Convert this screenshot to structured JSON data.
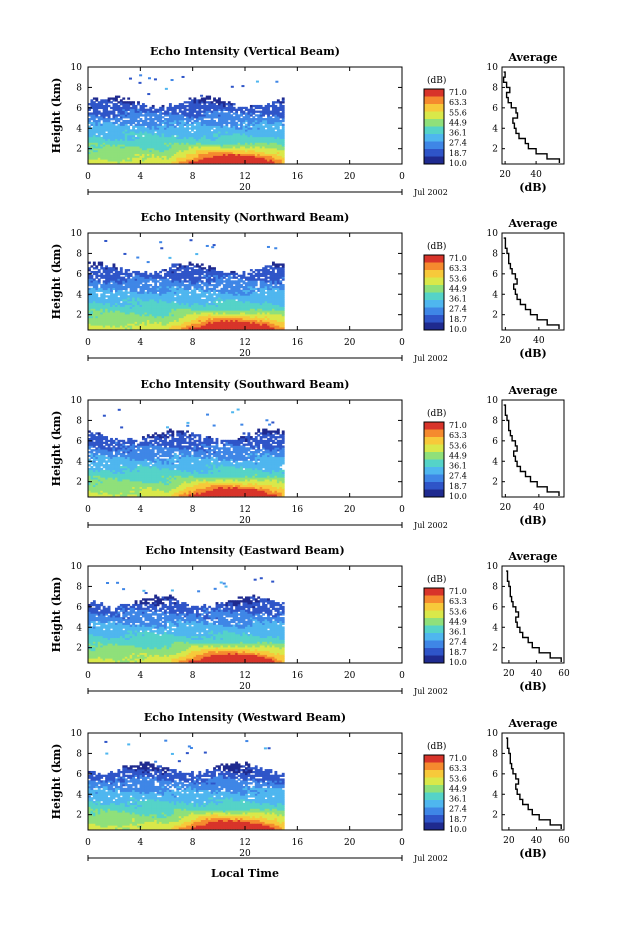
{
  "chart_data": [
    {
      "type": "heatmap",
      "title": "Echo Intensity (Vertical Beam)",
      "ylabel": "Height (km)",
      "xticks": [
        "0",
        "4",
        "8",
        "12",
        "16",
        "20",
        "0"
      ],
      "yticks": [
        "2",
        "4",
        "6",
        "8",
        "10"
      ],
      "xlim": [
        0,
        24
      ],
      "ylim": [
        0.5,
        10
      ],
      "day_label": "20",
      "date_label": "Jul 2002",
      "colorbar": {
        "unit": "(dB)",
        "labels": [
          "71.0",
          "63.3",
          "55.6",
          "44.9",
          "36.1",
          "27.4",
          "18.7",
          "10.0"
        ]
      },
      "average_profile": {
        "title": "Average",
        "xlabel": "(dB)",
        "xticks": [
          "20",
          "40"
        ],
        "xlim": [
          18,
          58
        ],
        "yticks": [
          "2",
          "4",
          "6",
          "8",
          "10"
        ],
        "height": [
          0.6,
          1.0,
          1.5,
          2.0,
          2.5,
          3.0,
          3.5,
          4.0,
          4.5,
          5.0,
          5.5,
          6.0,
          6.5,
          7.0,
          7.5,
          8.0,
          8.5,
          9.0,
          9.5
        ],
        "db": [
          55,
          47,
          40,
          35,
          33,
          29,
          27,
          26,
          25,
          28,
          27,
          24,
          22,
          21,
          23,
          21,
          19,
          20,
          19
        ]
      }
    },
    {
      "type": "heatmap",
      "title": "Echo Intensity (Northward Beam)",
      "ylabel": "Height (km)",
      "xticks": [
        "0",
        "4",
        "8",
        "12",
        "16",
        "20",
        "0"
      ],
      "yticks": [
        "2",
        "4",
        "6",
        "8",
        "10"
      ],
      "xlim": [
        0,
        24
      ],
      "ylim": [
        0.5,
        10
      ],
      "day_label": "20",
      "date_label": "Jul 2002",
      "colorbar": {
        "unit": "(dB)",
        "labels": [
          "71.0",
          "63.3",
          "53.6",
          "44.9",
          "36.1",
          "27.4",
          "18.7",
          "10.0"
        ]
      },
      "average_profile": {
        "title": "Average",
        "xlabel": "(dB)",
        "xticks": [
          "20",
          "40"
        ],
        "xlim": [
          18,
          55
        ],
        "yticks": [
          "2",
          "4",
          "6",
          "8",
          "10"
        ],
        "height": [
          0.6,
          1.0,
          1.5,
          2.0,
          2.5,
          3.0,
          3.5,
          4.0,
          4.5,
          5.0,
          5.5,
          6.0,
          6.5,
          7.0,
          7.5,
          8.0,
          8.5,
          9.0,
          9.5
        ],
        "db": [
          52,
          45,
          39,
          35,
          32,
          29,
          27,
          26,
          25,
          27,
          26,
          24,
          23,
          22,
          22,
          21,
          20,
          20,
          19
        ]
      }
    },
    {
      "type": "heatmap",
      "title": "Echo Intensity (Southward Beam)",
      "ylabel": "Height (km)",
      "xticks": [
        "0",
        "4",
        "8",
        "12",
        "16",
        "20",
        "0"
      ],
      "yticks": [
        "2",
        "4",
        "6",
        "8",
        "10"
      ],
      "xlim": [
        0,
        24
      ],
      "ylim": [
        0.5,
        10
      ],
      "day_label": "20",
      "date_label": "Jul 2002",
      "colorbar": {
        "unit": "(dB)",
        "labels": [
          "71.0",
          "63.3",
          "53.6",
          "44.9",
          "36.1",
          "27.4",
          "18.7",
          "10.0"
        ]
      },
      "average_profile": {
        "title": "Average",
        "xlabel": "(dB)",
        "xticks": [
          "20",
          "40"
        ],
        "xlim": [
          18,
          55
        ],
        "yticks": [
          "2",
          "4",
          "6",
          "8",
          "10"
        ],
        "height": [
          0.6,
          1.0,
          1.5,
          2.0,
          2.5,
          3.0,
          3.5,
          4.0,
          4.5,
          5.0,
          5.5,
          6.0,
          6.5,
          7.0,
          7.5,
          8.0,
          8.5,
          9.0,
          9.5
        ],
        "db": [
          52,
          45,
          39,
          35,
          32,
          29,
          27,
          26,
          25,
          27,
          26,
          24,
          23,
          22,
          22,
          21,
          20,
          20,
          19
        ]
      }
    },
    {
      "type": "heatmap",
      "title": "Echo Intensity (Eastward Beam)",
      "ylabel": "Height (km)",
      "xticks": [
        "0",
        "4",
        "8",
        "12",
        "16",
        "20",
        "0"
      ],
      "yticks": [
        "2",
        "4",
        "6",
        "8",
        "10"
      ],
      "xlim": [
        0,
        24
      ],
      "ylim": [
        0.5,
        10
      ],
      "day_label": "20",
      "date_label": "Jul 2002",
      "colorbar": {
        "unit": "(dB)",
        "labels": [
          "71.0",
          "63.3",
          "53.6",
          "44.9",
          "36.1",
          "27.4",
          "18.7",
          "10.0"
        ]
      },
      "average_profile": {
        "title": "Average",
        "xlabel": "(dB)",
        "xticks": [
          "20",
          "40",
          "60"
        ],
        "xlim": [
          15,
          60
        ],
        "yticks": [
          "2",
          "4",
          "6",
          "8",
          "10"
        ],
        "height": [
          0.6,
          1.0,
          1.5,
          2.0,
          2.5,
          3.0,
          3.5,
          4.0,
          4.5,
          5.0,
          5.5,
          6.0,
          6.5,
          7.0,
          7.5,
          8.0,
          8.5,
          9.0,
          9.5
        ],
        "db": [
          58,
          50,
          42,
          37,
          34,
          30,
          28,
          26,
          25,
          27,
          25,
          23,
          22,
          21,
          21,
          20,
          19,
          19,
          18
        ]
      }
    },
    {
      "type": "heatmap",
      "title": "Echo Intensity (Westward Beam)",
      "ylabel": "Height (km)",
      "xticks": [
        "0",
        "4",
        "8",
        "12",
        "16",
        "20",
        "0"
      ],
      "yticks": [
        "2",
        "4",
        "6",
        "8",
        "10"
      ],
      "xlim": [
        0,
        24
      ],
      "ylim": [
        0.5,
        10
      ],
      "day_label": "20",
      "date_label": "Jul 2002",
      "xlabel": "Local Time",
      "colorbar": {
        "unit": "(dB)",
        "labels": [
          "71.0",
          "63.3",
          "53.6",
          "44.9",
          "36.1",
          "27.4",
          "18.7",
          "10.0"
        ]
      },
      "average_profile": {
        "title": "Average",
        "xlabel": "(dB)",
        "xticks": [
          "20",
          "40",
          "60"
        ],
        "xlim": [
          15,
          60
        ],
        "yticks": [
          "2",
          "4",
          "6",
          "8",
          "10"
        ],
        "height": [
          0.6,
          1.0,
          1.5,
          2.0,
          2.5,
          3.0,
          3.5,
          4.0,
          4.5,
          5.0,
          5.5,
          6.0,
          6.5,
          7.0,
          7.5,
          8.0,
          8.5,
          9.0,
          9.5
        ],
        "db": [
          58,
          50,
          42,
          37,
          34,
          30,
          28,
          26,
          25,
          27,
          25,
          23,
          22,
          21,
          21,
          20,
          19,
          19,
          18
        ]
      }
    }
  ],
  "colormap": [
    "#1f2a8f",
    "#2f55c8",
    "#3f86e6",
    "#4fb6ef",
    "#55d3c8",
    "#8fe07a",
    "#d9e84a",
    "#f7c93a",
    "#f58a2e",
    "#d8342a"
  ]
}
